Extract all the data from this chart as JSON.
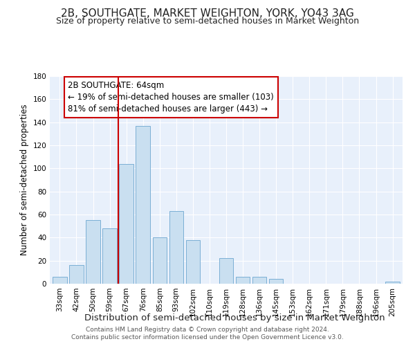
{
  "title": "2B, SOUTHGATE, MARKET WEIGHTON, YORK, YO43 3AG",
  "subtitle": "Size of property relative to semi-detached houses in Market Weighton",
  "xlabel": "Distribution of semi-detached houses by size in Market Weighton",
  "ylabel": "Number of semi-detached properties",
  "footnote1": "Contains HM Land Registry data © Crown copyright and database right 2024.",
  "footnote2": "Contains public sector information licensed under the Open Government Licence v3.0.",
  "categories": [
    "33sqm",
    "42sqm",
    "50sqm",
    "59sqm",
    "67sqm",
    "76sqm",
    "85sqm",
    "93sqm",
    "102sqm",
    "110sqm",
    "119sqm",
    "128sqm",
    "136sqm",
    "145sqm",
    "153sqm",
    "162sqm",
    "171sqm",
    "179sqm",
    "188sqm",
    "196sqm",
    "205sqm"
  ],
  "values": [
    6,
    16,
    55,
    48,
    104,
    137,
    40,
    63,
    38,
    0,
    22,
    6,
    6,
    4,
    0,
    0,
    0,
    0,
    0,
    0,
    2
  ],
  "bar_color": "#c9dff0",
  "bar_edge_color": "#7bafd4",
  "highlight_index": 4,
  "highlight_color": "#cc0000",
  "annotation_line1": "2B SOUTHGATE: 64sqm",
  "annotation_line2": "← 19% of semi-detached houses are smaller (103)",
  "annotation_line3": "81% of semi-detached houses are larger (443) →",
  "annotation_box_color": "#ffffff",
  "annotation_box_edge": "#cc0000",
  "ylim": [
    0,
    180
  ],
  "yticks": [
    0,
    20,
    40,
    60,
    80,
    100,
    120,
    140,
    160,
    180
  ],
  "bg_color": "#e8f0fb",
  "title_fontsize": 11,
  "subtitle_fontsize": 9,
  "xlabel_fontsize": 9.5,
  "ylabel_fontsize": 8.5,
  "annotation_fontsize": 8.5,
  "tick_fontsize": 7.5,
  "footnote_fontsize": 6.5
}
